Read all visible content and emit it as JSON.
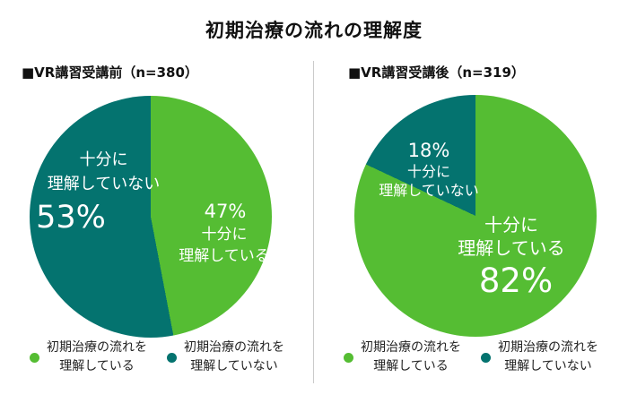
{
  "title": "初期治療の流れの理解度",
  "colors": {
    "green": "#55BD33",
    "teal": "#04736F",
    "divider": "#CBCBCB",
    "background": "#FFFFFF"
  },
  "chart_data": [
    {
      "type": "pie",
      "title": "VR講習受講前",
      "n": 380,
      "start_angle": "12-oclock",
      "direction": "clockwise",
      "legend_position": "bottom",
      "slices": [
        {
          "label": "十分に理解している",
          "value": 47,
          "color": "#55BD33"
        },
        {
          "label": "十分に理解していない",
          "value": 53,
          "color": "#04736F"
        }
      ]
    },
    {
      "type": "pie",
      "title": "VR講習受講後",
      "n": 319,
      "start_angle": "12-oclock",
      "direction": "clockwise",
      "legend_position": "bottom",
      "slices": [
        {
          "label": "十分に理解している",
          "value": 82,
          "color": "#55BD33"
        },
        {
          "label": "十分に理解していない",
          "value": 18,
          "color": "#04736F"
        }
      ]
    }
  ],
  "panels": [
    {
      "header": "■VR講習受講前（n=380）",
      "slice_labels": {
        "teal": {
          "line1": "十分に",
          "line2": "理解していない",
          "pct": "53%"
        },
        "green": {
          "pct": "47%",
          "line1": "十分に",
          "line2": "理解している"
        }
      },
      "legend": [
        {
          "color": "#55BD33",
          "line1": "初期治療の流れを",
          "line2": "理解している"
        },
        {
          "color": "#04736F",
          "line1": "初期治療の流れを",
          "line2": "理解していない"
        }
      ]
    },
    {
      "header": "■VR講習受講後（n=319）",
      "slice_labels": {
        "teal": {
          "pct": "18%",
          "line1": "十分に",
          "line2": "理解していない"
        },
        "green": {
          "line1": "十分に",
          "line2": "理解している",
          "pct": "82%"
        }
      },
      "legend": [
        {
          "color": "#55BD33",
          "line1": "初期治療の流れを",
          "line2": "理解している"
        },
        {
          "color": "#04736F",
          "line1": "初期治療の流れを",
          "line2": "理解していない"
        }
      ]
    }
  ]
}
